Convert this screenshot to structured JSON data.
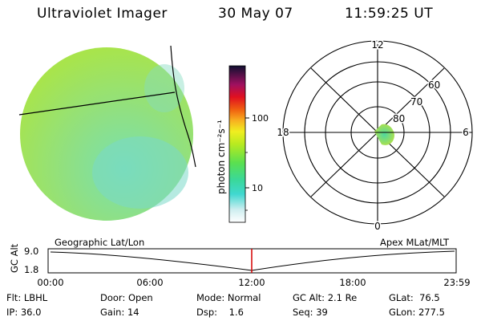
{
  "header": {
    "instrument": "Ultraviolet Imager",
    "date": "30 May 07",
    "time": "11:59:25 UT"
  },
  "colorbar": {
    "unit_label": "photon cm⁻²s⁻¹",
    "ticks": [
      "100",
      "10"
    ]
  },
  "polar_plot": {
    "mlt_labels": {
      "top": "12",
      "left": "18",
      "right": "6",
      "bottom": "0"
    },
    "lat_labels": [
      "60",
      "70",
      "80"
    ]
  },
  "timeline": {
    "left_title": "Geographic Lat/Lon",
    "right_title": "Apex MLat/MLT",
    "axis_label": "GC Alt",
    "y_ticks": [
      "9.0",
      "1.8"
    ],
    "x_ticks": [
      "00:00",
      "06:00",
      "12:00",
      "18:00",
      "23:59"
    ],
    "marker_color": "#d40000"
  },
  "status": {
    "row1": [
      {
        "label": "Flt:",
        "value": "LBHL"
      },
      {
        "label": "Door:",
        "value": "Open"
      },
      {
        "label": "Mode:",
        "value": "Normal"
      },
      {
        "label": "GC Alt:",
        "value": "2.1 Re"
      },
      {
        "label": "GLat:",
        "value": "76.5"
      }
    ],
    "row2": [
      {
        "label": "IP:",
        "value": "36.0"
      },
      {
        "label": "Gain:",
        "value": "14"
      },
      {
        "label": "Dsp:",
        "value": "1.6"
      },
      {
        "label": "Seq:",
        "value": "39"
      },
      {
        "label": "GLon:",
        "value": "277.5"
      }
    ]
  }
}
